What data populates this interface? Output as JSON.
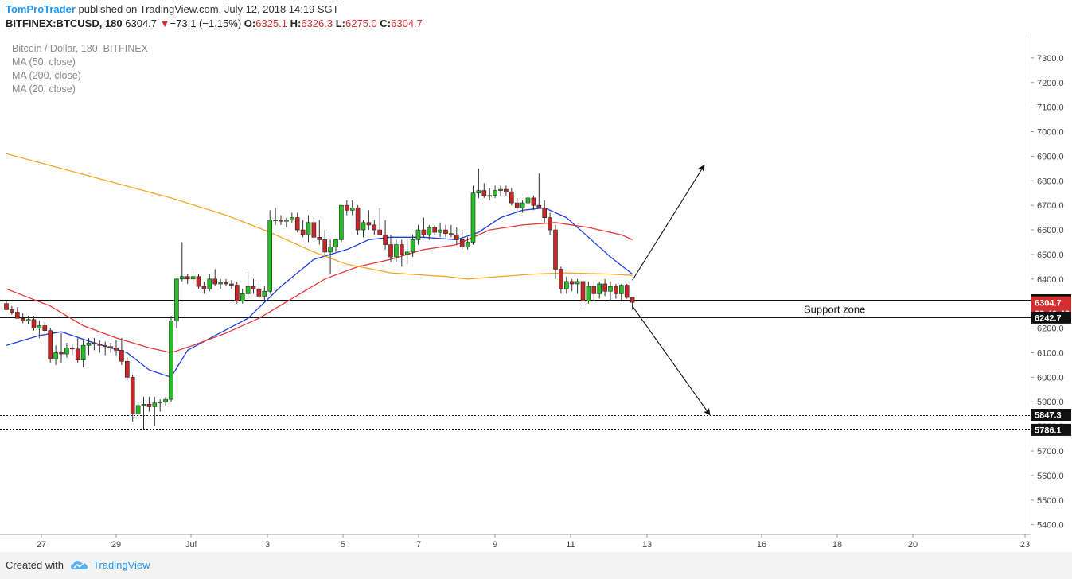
{
  "header": {
    "author": "TomProTrader",
    "published_text": "published on TradingView.com, July 12, 2018 14:19 SGT",
    "symbol": "BITFINEX:BTCUSD, 180",
    "last": "6304.7",
    "change_arrow": "▼",
    "change": "−73.1 (−1.15%)",
    "open_label": "O:",
    "open": "6325.1",
    "high_label": "H:",
    "high": "6326.3",
    "low_label": "L:",
    "low": "6275.0",
    "close_label": "C:",
    "close": "6304.7"
  },
  "overlay": {
    "title": "Bitcoin / Dollar, 180, BITFINEX",
    "indicators": [
      "MA (50, close)",
      "MA (200, close)",
      "MA (20, close)"
    ]
  },
  "footer": {
    "created_with": "Created with",
    "brand": "TradingView",
    "brand_icon": "tradingview-cloud-icon"
  },
  "colors": {
    "up": "#26c026",
    "down": "#c62828",
    "ma20": "#1e3fe0",
    "ma50": "#e53935",
    "ma200": "#f5a623",
    "price_tag": "#d32f2f",
    "accent": "#2196f3"
  },
  "chart_data": {
    "type": "candlestick",
    "ylim": [
      5360,
      7400
    ],
    "y_ticks": [
      "7300.0",
      "7200.0",
      "7100.0",
      "7000.0",
      "6900.0",
      "6800.0",
      "6700.0",
      "6600.0",
      "6500.0",
      "6400.0",
      "6300.0",
      "6200.0",
      "6100.0",
      "6000.0",
      "5900.0",
      "5800.0",
      "5700.0",
      "5600.0",
      "5500.0",
      "5400.0"
    ],
    "x_ticks": [
      "27",
      "29",
      "Jul",
      "3",
      "5",
      "7",
      "9",
      "11",
      "13",
      "16",
      "18",
      "20",
      "23"
    ],
    "price_labels": [
      {
        "text": "6313.7",
        "value": 6313.7,
        "style": "dark"
      },
      {
        "text": "6304.7",
        "value": 6304.7,
        "style": "red"
      },
      {
        "text": "02:40:48",
        "value": 6260,
        "style": "red"
      },
      {
        "text": "6242.7",
        "value": 6242.7,
        "style": "dark"
      },
      {
        "text": "5847.3",
        "value": 5847.3,
        "style": "dark"
      },
      {
        "text": "5786.1",
        "value": 5786.1,
        "style": "dark"
      }
    ],
    "horizontal_lines": [
      {
        "value": 6313.7,
        "style": "solid"
      },
      {
        "value": 6242.7,
        "style": "solid"
      },
      {
        "value": 5847.3,
        "style": "dotted"
      },
      {
        "value": 5786.1,
        "style": "dotted"
      }
    ],
    "annotations": [
      {
        "text": "Support zone",
        "value": 6278
      }
    ],
    "candles": [
      [
        6300,
        6310,
        6285,
        6275
      ],
      [
        6275,
        6290,
        6255,
        6265
      ],
      [
        6265,
        6285,
        6250,
        6240
      ],
      [
        6240,
        6260,
        6220,
        6230
      ],
      [
        6230,
        6250,
        6215,
        6235
      ],
      [
        6235,
        6250,
        6190,
        6200
      ],
      [
        6200,
        6230,
        6160,
        6210
      ],
      [
        6210,
        6225,
        6180,
        6190
      ],
      [
        6190,
        6200,
        6060,
        6075
      ],
      [
        6075,
        6130,
        6050,
        6100
      ],
      [
        6100,
        6180,
        6060,
        6095
      ],
      [
        6095,
        6140,
        6080,
        6120
      ],
      [
        6120,
        6135,
        6090,
        6115
      ],
      [
        6115,
        6160,
        6060,
        6070
      ],
      [
        6070,
        6150,
        6040,
        6130
      ],
      [
        6130,
        6160,
        6090,
        6140
      ],
      [
        6140,
        6160,
        6110,
        6135
      ],
      [
        6135,
        6150,
        6100,
        6130
      ],
      [
        6130,
        6145,
        6090,
        6125
      ],
      [
        6125,
        6140,
        6100,
        6120
      ],
      [
        6120,
        6150,
        6090,
        6110
      ],
      [
        6110,
        6160,
        6050,
        6065
      ],
      [
        6065,
        6080,
        5990,
        6000
      ],
      [
        6000,
        6010,
        5820,
        5850
      ],
      [
        5850,
        5900,
        5830,
        5885
      ],
      [
        5885,
        5920,
        5790,
        5890
      ],
      [
        5890,
        5920,
        5860,
        5880
      ],
      [
        5880,
        5920,
        5800,
        5895
      ],
      [
        5895,
        5910,
        5860,
        5900
      ],
      [
        5900,
        5920,
        5885,
        5910
      ],
      [
        5910,
        6250,
        5900,
        6230
      ],
      [
        6230,
        6400,
        6200,
        6400
      ],
      [
        6400,
        6550,
        6390,
        6410
      ],
      [
        6410,
        6420,
        6380,
        6400
      ],
      [
        6400,
        6430,
        6380,
        6410
      ],
      [
        6410,
        6420,
        6360,
        6370
      ],
      [
        6370,
        6390,
        6340,
        6360
      ],
      [
        6360,
        6420,
        6350,
        6400
      ],
      [
        6400,
        6440,
        6370,
        6380
      ],
      [
        6380,
        6400,
        6360,
        6385
      ],
      [
        6385,
        6400,
        6370,
        6380
      ],
      [
        6380,
        6395,
        6360,
        6375
      ],
      [
        6375,
        6390,
        6300,
        6310
      ],
      [
        6310,
        6360,
        6300,
        6340
      ],
      [
        6340,
        6430,
        6330,
        6370
      ],
      [
        6370,
        6400,
        6340,
        6360
      ],
      [
        6360,
        6390,
        6320,
        6330
      ],
      [
        6330,
        6370,
        6310,
        6350
      ],
      [
        6350,
        6680,
        6340,
        6640
      ],
      [
        6640,
        6690,
        6620,
        6640
      ],
      [
        6640,
        6660,
        6620,
        6635
      ],
      [
        6635,
        6650,
        6610,
        6640
      ],
      [
        6640,
        6670,
        6630,
        6650
      ],
      [
        6650,
        6670,
        6590,
        6600
      ],
      [
        6600,
        6640,
        6570,
        6580
      ],
      [
        6580,
        6660,
        6550,
        6630
      ],
      [
        6630,
        6650,
        6560,
        6570
      ],
      [
        6570,
        6640,
        6540,
        6560
      ],
      [
        6560,
        6600,
        6500,
        6510
      ],
      [
        6510,
        6560,
        6420,
        6530
      ],
      [
        6530,
        6560,
        6510,
        6560
      ],
      [
        6560,
        6700,
        6550,
        6700
      ],
      [
        6700,
        6720,
        6660,
        6680
      ],
      [
        6680,
        6720,
        6660,
        6690
      ],
      [
        6690,
        6700,
        6580,
        6600
      ],
      [
        6600,
        6640,
        6570,
        6630
      ],
      [
        6630,
        6680,
        6600,
        6620
      ],
      [
        6620,
        6640,
        6580,
        6600
      ],
      [
        6600,
        6690,
        6580,
        6580
      ],
      [
        6580,
        6640,
        6520,
        6540
      ],
      [
        6540,
        6580,
        6470,
        6490
      ],
      [
        6490,
        6560,
        6470,
        6540
      ],
      [
        6540,
        6560,
        6450,
        6500
      ],
      [
        6500,
        6560,
        6460,
        6510
      ],
      [
        6510,
        6580,
        6490,
        6560
      ],
      [
        6560,
        6620,
        6540,
        6600
      ],
      [
        6600,
        6650,
        6570,
        6580
      ],
      [
        6580,
        6620,
        6560,
        6610
      ],
      [
        6610,
        6620,
        6580,
        6590
      ],
      [
        6590,
        6630,
        6570,
        6600
      ],
      [
        6600,
        6620,
        6570,
        6585
      ],
      [
        6585,
        6620,
        6570,
        6580
      ],
      [
        6580,
        6610,
        6540,
        6560
      ],
      [
        6560,
        6600,
        6520,
        6530
      ],
      [
        6530,
        6570,
        6520,
        6550
      ],
      [
        6550,
        6780,
        6540,
        6750
      ],
      [
        6750,
        6850,
        6730,
        6760
      ],
      [
        6760,
        6790,
        6730,
        6740
      ],
      [
        6740,
        6770,
        6720,
        6740
      ],
      [
        6740,
        6780,
        6730,
        6760
      ],
      [
        6760,
        6780,
        6740,
        6765
      ],
      [
        6765,
        6780,
        6740,
        6755
      ],
      [
        6755,
        6770,
        6700,
        6710
      ],
      [
        6710,
        6730,
        6670,
        6690
      ],
      [
        6690,
        6720,
        6670,
        6710
      ],
      [
        6710,
        6740,
        6690,
        6730
      ],
      [
        6730,
        6740,
        6680,
        6700
      ],
      [
        6700,
        6830,
        6690,
        6690
      ],
      [
        6690,
        6720,
        6630,
        6650
      ],
      [
        6650,
        6670,
        6580,
        6600
      ],
      [
        6600,
        6620,
        6400,
        6440
      ],
      [
        6440,
        6450,
        6340,
        6360
      ],
      [
        6360,
        6410,
        6340,
        6390
      ],
      [
        6390,
        6400,
        6350,
        6380
      ],
      [
        6380,
        6400,
        6340,
        6390
      ],
      [
        6390,
        6410,
        6290,
        6310
      ],
      [
        6310,
        6390,
        6300,
        6370
      ],
      [
        6370,
        6390,
        6310,
        6340
      ],
      [
        6340,
        6390,
        6320,
        6380
      ],
      [
        6380,
        6400,
        6330,
        6350
      ],
      [
        6350,
        6390,
        6310,
        6370
      ],
      [
        6370,
        6380,
        6320,
        6340
      ],
      [
        6340,
        6380,
        6310,
        6375
      ],
      [
        6375,
        6380,
        6320,
        6325
      ],
      [
        6325,
        6326,
        6275,
        6305
      ]
    ],
    "series": [
      {
        "name": "MA (20, close)",
        "points": [
          [
            0,
            6130
          ],
          [
            6,
            6170
          ],
          [
            10,
            6185
          ],
          [
            16,
            6140
          ],
          [
            22,
            6100
          ],
          [
            26,
            6030
          ],
          [
            30,
            6000
          ],
          [
            33,
            6110
          ],
          [
            38,
            6170
          ],
          [
            44,
            6240
          ],
          [
            50,
            6370
          ],
          [
            56,
            6480
          ],
          [
            62,
            6520
          ],
          [
            66,
            6560
          ],
          [
            70,
            6570
          ],
          [
            76,
            6570
          ],
          [
            82,
            6560
          ],
          [
            86,
            6590
          ],
          [
            90,
            6650
          ],
          [
            94,
            6680
          ],
          [
            98,
            6690
          ],
          [
            102,
            6650
          ],
          [
            106,
            6570
          ],
          [
            110,
            6490
          ],
          [
            114,
            6420
          ]
        ]
      },
      {
        "name": "MA (50, close)",
        "points": [
          [
            0,
            6360
          ],
          [
            8,
            6290
          ],
          [
            14,
            6210
          ],
          [
            20,
            6160
          ],
          [
            26,
            6120
          ],
          [
            30,
            6100
          ],
          [
            34,
            6130
          ],
          [
            40,
            6180
          ],
          [
            46,
            6240
          ],
          [
            52,
            6320
          ],
          [
            58,
            6400
          ],
          [
            64,
            6450
          ],
          [
            70,
            6480
          ],
          [
            76,
            6520
          ],
          [
            82,
            6540
          ],
          [
            88,
            6600
          ],
          [
            94,
            6620
          ],
          [
            100,
            6630
          ],
          [
            106,
            6610
          ],
          [
            112,
            6580
          ],
          [
            114,
            6560
          ]
        ]
      },
      {
        "name": "MA (200, close)",
        "points": [
          [
            0,
            6910
          ],
          [
            10,
            6850
          ],
          [
            20,
            6790
          ],
          [
            30,
            6730
          ],
          [
            40,
            6660
          ],
          [
            48,
            6590
          ],
          [
            56,
            6510
          ],
          [
            62,
            6460
          ],
          [
            70,
            6425
          ],
          [
            80,
            6410
          ],
          [
            84,
            6400
          ],
          [
            90,
            6410
          ],
          [
            96,
            6420
          ],
          [
            102,
            6425
          ],
          [
            110,
            6420
          ],
          [
            114,
            6415
          ]
        ]
      }
    ],
    "arrows": [
      {
        "from": [
          114,
          6395
        ],
        "to": [
          127,
          6860
        ]
      },
      {
        "from": [
          114,
          6290
        ],
        "to": [
          128,
          5850
        ]
      }
    ]
  }
}
